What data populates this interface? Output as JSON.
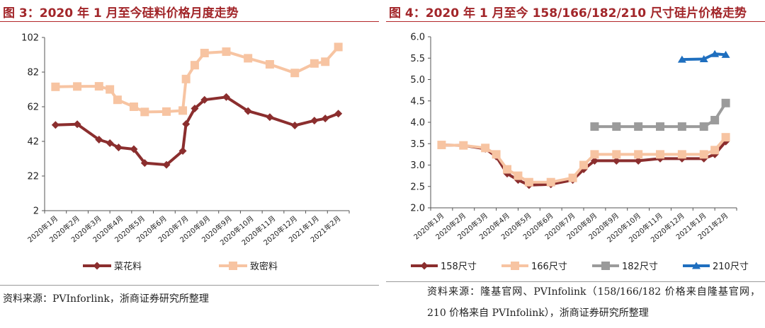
{
  "chart_data": [
    {
      "type": "line",
      "fig_title": "图 3：2020 年 1 月至今硅料价格月度走势",
      "title": "",
      "xlabel": "",
      "ylabel": "",
      "ylim": [
        2,
        102
      ],
      "yticks": [
        "2",
        "22",
        "42",
        "62",
        "82",
        "102"
      ],
      "ytick_values": [
        2,
        22,
        42,
        62,
        82,
        102
      ],
      "categories": [
        "2020年1月",
        "2020年2月",
        "2020年3月",
        "2020年4月",
        "2020年5月",
        "2020年6月",
        "2020年7月",
        "2020年8月",
        "2020年9月",
        "2020年10月",
        "2020年11月",
        "2020年12月",
        "2021年1月",
        "2021年2月"
      ],
      "grid": false,
      "legend_position": "bottom",
      "series": [
        {
          "name": "菜花料",
          "color": "#8b2e2e",
          "marker": "diamond",
          "x": [
            0,
            1,
            2,
            2.5,
            2.9,
            3.6,
            4.1,
            5.1,
            5.85,
            6.0,
            6.4,
            6.85,
            7.85,
            8.85,
            9.85,
            11.0,
            11.9,
            12.4,
            13.0
          ],
          "values": [
            51.5,
            51.9,
            43,
            41,
            38.5,
            37.5,
            29.5,
            28.5,
            36.5,
            52,
            61,
            66,
            67.6,
            59.5,
            56,
            51.2,
            54,
            55.2,
            58
          ]
        },
        {
          "name": "致密料",
          "color": "#f7c4a2",
          "marker": "square",
          "x": [
            0,
            1,
            2,
            2.5,
            2.85,
            3.6,
            4.1,
            5.1,
            5.85,
            6.0,
            6.4,
            6.85,
            7.85,
            8.85,
            9.85,
            11.0,
            11.9,
            12.4,
            13.0
          ],
          "values": [
            73.5,
            73.7,
            73.8,
            72,
            66,
            62,
            59,
            59.2,
            59.8,
            78,
            86,
            93,
            93.8,
            90,
            86.5,
            81.5,
            87,
            88,
            96.5
          ]
        }
      ]
    },
    {
      "type": "line",
      "fig_title": "图 4：2020 年 1 月至今 158/166/182/210 尺寸硅片价格走势",
      "title": "",
      "xlabel": "",
      "ylabel": "",
      "ylim": [
        2.0,
        6.0
      ],
      "yticks": [
        "2.0",
        "2.5",
        "3.0",
        "3.5",
        "4.0",
        "4.5",
        "5.0",
        "5.5",
        "6.0"
      ],
      "ytick_values": [
        2.0,
        2.5,
        3.0,
        3.5,
        4.0,
        4.5,
        5.0,
        5.5,
        6.0
      ],
      "categories": [
        "2020年1月",
        "2020年2月",
        "2020年3月",
        "2020年4月",
        "2020年5月",
        "2020年6月",
        "2020年7月",
        "2020年8月",
        "2020年9月",
        "2020年10月",
        "2020年11月",
        "2020年12月",
        "2021年1月",
        "2021年2月"
      ],
      "grid": false,
      "legend_position": "bottom",
      "series": [
        {
          "name": "158尺寸",
          "color": "#8b2e2e",
          "marker": "diamond",
          "x": [
            0,
            1,
            2,
            2.5,
            3,
            3.5,
            4,
            5,
            6,
            6.5,
            7,
            8,
            9,
            10,
            11,
            12,
            12.5,
            13
          ],
          "values": [
            3.47,
            3.46,
            3.38,
            3.2,
            2.8,
            2.65,
            2.53,
            2.55,
            2.65,
            2.9,
            3.1,
            3.1,
            3.1,
            3.15,
            3.15,
            3.15,
            3.25,
            3.55
          ]
        },
        {
          "name": "166尺寸",
          "color": "#f7c4a2",
          "marker": "square",
          "x": [
            0,
            1,
            2,
            2.5,
            3,
            3.5,
            4,
            5,
            6,
            6.5,
            7,
            8,
            9,
            10,
            11,
            12,
            12.5,
            13
          ],
          "values": [
            3.47,
            3.46,
            3.4,
            3.25,
            2.9,
            2.75,
            2.6,
            2.6,
            2.7,
            3.0,
            3.25,
            3.25,
            3.25,
            3.25,
            3.25,
            3.25,
            3.35,
            3.65
          ]
        },
        {
          "name": "182尺寸",
          "color": "#9b9b9b",
          "marker": "square",
          "x": [
            7,
            8,
            9,
            10,
            11,
            12,
            12.5,
            13
          ],
          "values": [
            3.9,
            3.9,
            3.9,
            3.9,
            3.9,
            3.9,
            4.05,
            4.45
          ]
        },
        {
          "name": "210尺寸",
          "color": "#1f6fbf",
          "marker": "triangle",
          "x": [
            11,
            12,
            12.5,
            13
          ],
          "values": [
            5.47,
            5.48,
            5.6,
            5.58
          ]
        }
      ]
    }
  ],
  "sources": [
    "资料来源：PVInforlink，浙商证券研究所整理",
    "资料来源：隆基官网、PVInfolink（158/166/182 价格来自隆基官网，210 价格来自 PVInfolink），浙商证券研究所整理"
  ]
}
